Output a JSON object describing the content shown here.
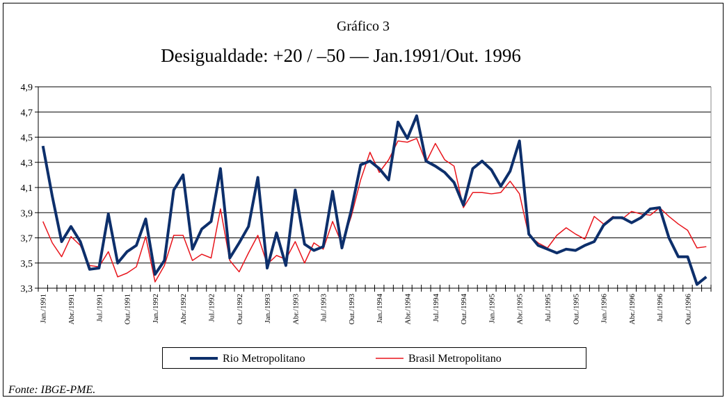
{
  "chart_data": {
    "type": "line",
    "title": "Gráfico 3",
    "subtitle": "Desigualdade: +20 / –50 — Jan.1991/Out. 1996",
    "source": "Fonte: IBGE-PME.",
    "categories": [
      "Jan./1991",
      null,
      null,
      "Abr./1991",
      null,
      null,
      "Jul./1991",
      null,
      null,
      "Out./1991",
      null,
      null,
      "Jan./1992",
      null,
      null,
      "Abr./1992",
      null,
      null,
      "Jul./1992",
      null,
      null,
      "Out./1992",
      null,
      null,
      "Jan./1993",
      null,
      null,
      "Abr./1993",
      null,
      null,
      "Jul./1993",
      null,
      null,
      "Out./1993",
      null,
      null,
      "Jan./1994",
      null,
      null,
      "Abr./1994",
      null,
      null,
      "Jul./1994",
      null,
      null,
      "Out./1994",
      null,
      null,
      "Jan./1995",
      null,
      null,
      "Abr./1995",
      null,
      null,
      "Jul./1995",
      null,
      null,
      "Out./1995",
      null,
      null,
      "Jan./1996",
      null,
      null,
      "Abr./1996",
      null,
      null,
      "Jul./1996",
      null,
      null,
      "Out./1996",
      null,
      null
    ],
    "series": [
      {
        "name": "Rio Metropolitano",
        "color": "#0d2f6b",
        "width": 4,
        "values": [
          4.43,
          4.03,
          3.67,
          3.79,
          3.67,
          3.45,
          3.46,
          3.89,
          3.5,
          3.59,
          3.64,
          3.85,
          3.41,
          3.52,
          4.08,
          4.2,
          3.61,
          3.77,
          3.83,
          4.25,
          3.54,
          3.66,
          3.79,
          4.18,
          3.46,
          3.74,
          3.48,
          4.08,
          3.65,
          3.6,
          3.63,
          4.07,
          3.62,
          3.92,
          4.28,
          4.31,
          4.25,
          4.16,
          4.62,
          4.49,
          4.67,
          4.31,
          4.27,
          4.22,
          4.14,
          3.96,
          4.25,
          4.31,
          4.24,
          4.11,
          4.23,
          4.47,
          3.73,
          3.64,
          3.61,
          3.58,
          3.61,
          3.6,
          3.64,
          3.67,
          3.8,
          3.86,
          3.86,
          3.82,
          3.86,
          3.93,
          3.94,
          3.7,
          3.55,
          3.55,
          3.33,
          3.39
        ]
      },
      {
        "name": "Brasil Metropolitano",
        "color": "#e8141b",
        "width": 1.5,
        "values": [
          3.83,
          3.66,
          3.55,
          3.71,
          3.64,
          3.48,
          3.47,
          3.59,
          3.39,
          3.42,
          3.47,
          3.71,
          3.35,
          3.48,
          3.72,
          3.72,
          3.52,
          3.57,
          3.54,
          3.93,
          3.52,
          3.43,
          3.58,
          3.72,
          3.49,
          3.56,
          3.53,
          3.67,
          3.5,
          3.66,
          3.61,
          3.83,
          3.65,
          3.87,
          4.16,
          4.38,
          4.22,
          4.32,
          4.47,
          4.46,
          4.49,
          4.3,
          4.45,
          4.32,
          4.27,
          3.94,
          4.06,
          4.06,
          4.05,
          4.06,
          4.15,
          4.05,
          3.72,
          3.66,
          3.62,
          3.72,
          3.78,
          3.73,
          3.69,
          3.87,
          3.81,
          3.87,
          3.85,
          3.91,
          3.89,
          3.88,
          3.94,
          3.87,
          3.81,
          3.76,
          3.62,
          3.63
        ]
      }
    ],
    "ylim": [
      3.3,
      4.9
    ],
    "yticks": [
      {
        "value": 3.3,
        "label": "3,3"
      },
      {
        "value": 3.5,
        "label": "3,5"
      },
      {
        "value": 3.7,
        "label": "3,7"
      },
      {
        "value": 3.9,
        "label": "3,9"
      },
      {
        "value": 4.1,
        "label": "4,1"
      },
      {
        "value": 4.3,
        "label": "4,3"
      },
      {
        "value": 4.5,
        "label": "4,5"
      },
      {
        "value": 4.7,
        "label": "4,7"
      },
      {
        "value": 4.9,
        "label": "4,9"
      }
    ],
    "grid": true,
    "legend": "bottom"
  }
}
